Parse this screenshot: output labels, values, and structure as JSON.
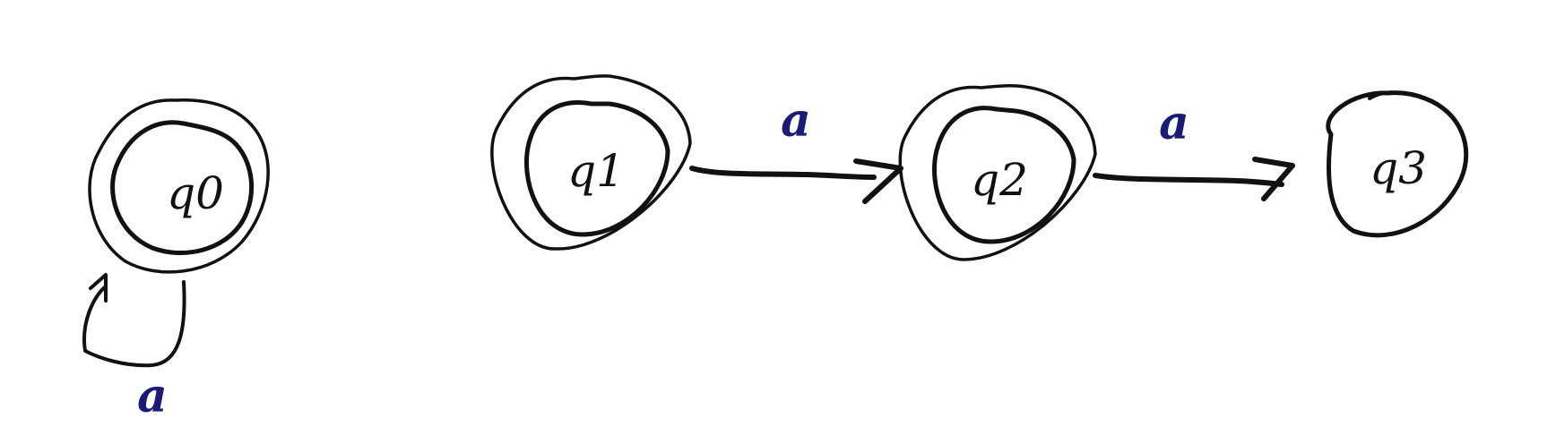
{
  "states": [
    {
      "id": "q0",
      "label": "q0",
      "accepting": true
    },
    {
      "id": "q1",
      "label": "q1",
      "accepting": true
    },
    {
      "id": "q2",
      "label": "q2",
      "accepting": true
    },
    {
      "id": "q3",
      "label": "q3",
      "accepting": false
    }
  ],
  "transitions": [
    {
      "from": "q0",
      "to": "q0",
      "label": "a"
    },
    {
      "from": "q1",
      "to": "q2",
      "label": "a"
    },
    {
      "from": "q2",
      "to": "q3",
      "label": "a"
    }
  ],
  "colors": {
    "ink": "#111111",
    "label": "#1a1a7a",
    "background": "#ffffff"
  }
}
